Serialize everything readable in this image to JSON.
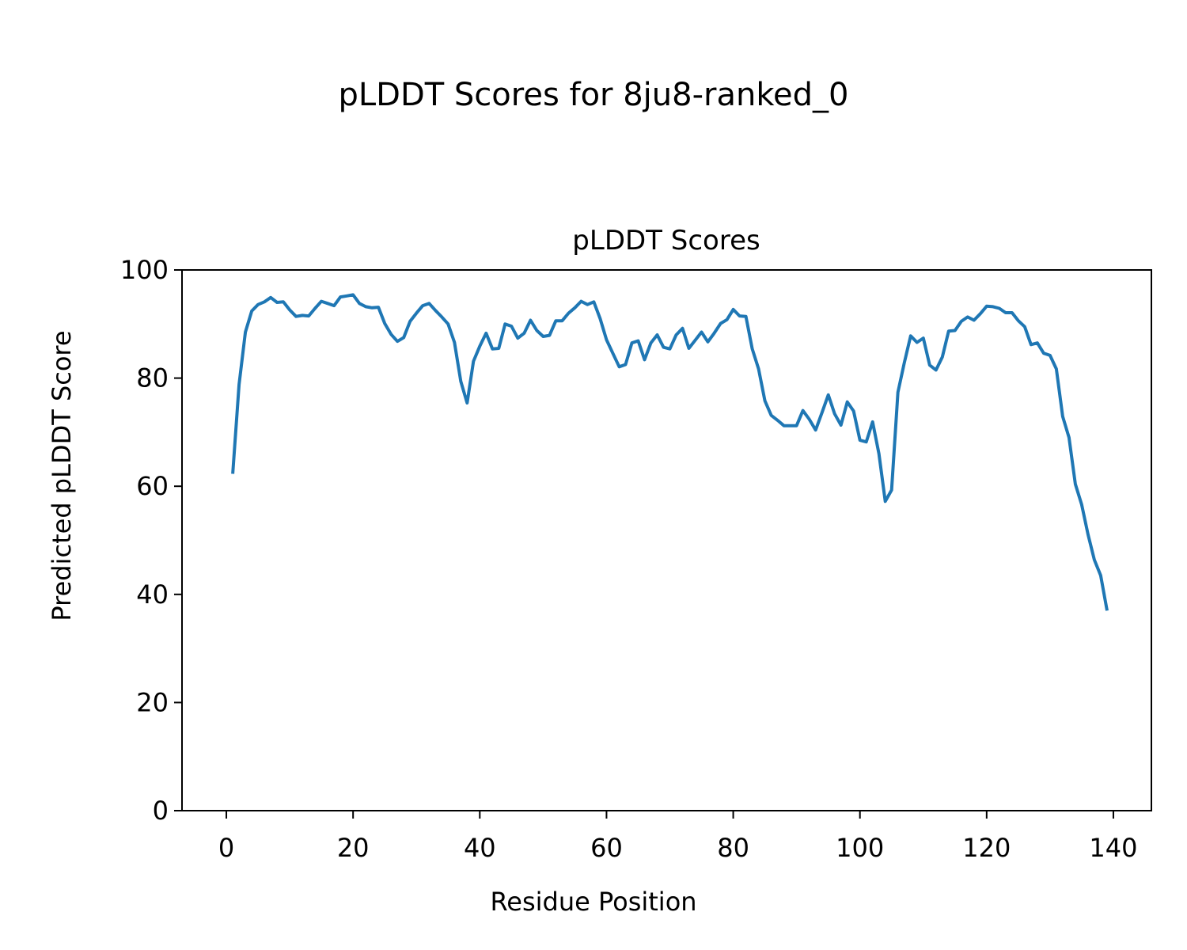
{
  "figure_title": "pLDDT Scores for 8ju8-ranked_0",
  "chart_data": {
    "type": "line",
    "title": "pLDDT Scores",
    "xlabel": "Residue Position",
    "ylabel": "Predicted pLDDT Score",
    "xlim": [
      -7,
      146
    ],
    "ylim": [
      0,
      100
    ],
    "xticks": [
      0,
      20,
      40,
      60,
      80,
      100,
      120,
      140
    ],
    "yticks": [
      0,
      20,
      40,
      60,
      80,
      100
    ],
    "grid": false,
    "series": [
      {
        "color": "#1f77b4",
        "x": [
          1,
          2,
          3,
          4,
          5,
          6,
          7,
          8,
          9,
          10,
          11,
          12,
          13,
          14,
          15,
          16,
          17,
          18,
          19,
          20,
          21,
          22,
          23,
          24,
          25,
          26,
          27,
          28,
          29,
          30,
          31,
          32,
          33,
          34,
          35,
          36,
          37,
          38,
          39,
          40,
          41,
          42,
          43,
          44,
          45,
          46,
          47,
          48,
          49,
          50,
          51,
          52,
          53,
          54,
          55,
          56,
          57,
          58,
          59,
          60,
          61,
          62,
          63,
          64,
          65,
          66,
          67,
          68,
          69,
          70,
          71,
          72,
          73,
          74,
          75,
          76,
          77,
          78,
          79,
          80,
          81,
          82,
          83,
          84,
          85,
          86,
          87,
          88,
          89,
          90,
          91,
          92,
          93,
          94,
          95,
          96,
          97,
          98,
          99,
          100,
          101,
          102,
          103,
          104,
          105,
          106,
          107,
          108,
          109,
          110,
          111,
          112,
          113,
          114,
          115,
          116,
          117,
          118,
          119,
          120,
          121,
          122,
          123,
          124,
          125,
          126,
          127,
          128,
          129,
          130,
          131,
          132,
          133,
          134,
          135,
          136,
          137,
          138,
          139
        ],
        "y": [
          62.3,
          78.8,
          88.5,
          92.4,
          93.6,
          94.1,
          94.9,
          94.0,
          94.1,
          92.6,
          91.4,
          91.6,
          91.5,
          92.9,
          94.2,
          93.8,
          93.4,
          95.0,
          95.2,
          95.4,
          93.8,
          93.2,
          93.0,
          93.1,
          90.1,
          88.1,
          86.8,
          87.5,
          90.5,
          92.0,
          93.4,
          93.8,
          92.5,
          91.3,
          90.0,
          86.6,
          79.4,
          75.4,
          83.1,
          85.9,
          88.3,
          85.4,
          85.5,
          90.0,
          89.6,
          87.4,
          88.3,
          90.7,
          88.8,
          87.7,
          87.9,
          90.6,
          90.6,
          92.0,
          93.0,
          94.2,
          93.6,
          94.1,
          91.0,
          87.1,
          84.6,
          82.1,
          82.5,
          86.5,
          86.9,
          83.4,
          86.5,
          88.0,
          85.7,
          85.4,
          88.0,
          89.2,
          85.5,
          87.0,
          88.5,
          86.7,
          88.3,
          90.1,
          90.8,
          92.7,
          91.5,
          91.4,
          85.4,
          81.7,
          75.8,
          73.1,
          72.2,
          71.2,
          71.2,
          71.2,
          74.0,
          72.4,
          70.4,
          73.6,
          76.9,
          73.4,
          71.3,
          75.6,
          73.9,
          68.5,
          68.2,
          71.9,
          66.0,
          57.2,
          59.3,
          77.4,
          82.8,
          87.8,
          86.6,
          87.4,
          82.4,
          81.5,
          83.9,
          88.7,
          88.8,
          90.5,
          91.3,
          90.7,
          91.9,
          93.3,
          93.2,
          92.9,
          92.1,
          92.1,
          90.6,
          89.5,
          86.2,
          86.5,
          84.6,
          84.2,
          81.7,
          72.9,
          69.0,
          60.4,
          56.6,
          51.1,
          46.4,
          43.5,
          37.0
        ]
      }
    ]
  }
}
